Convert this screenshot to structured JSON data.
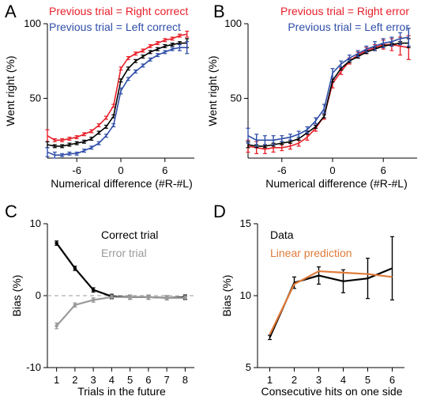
{
  "chart_data": [
    {
      "panel": "A",
      "type": "line",
      "xlabel": "Numerical difference (#R-#L)",
      "ylabel": "Went right (%)",
      "xlim": [
        -10,
        10
      ],
      "ylim": [
        10,
        100
      ],
      "xticks": [
        -6,
        0,
        6
      ],
      "yticks": [
        50,
        100
      ],
      "x": [
        -10,
        -9,
        -8,
        -7,
        -6,
        -5,
        -4,
        -3,
        -2,
        -1,
        0,
        1,
        2,
        3,
        4,
        5,
        6,
        7,
        8,
        9
      ],
      "series": [
        {
          "name": "Previous trial = Right correct",
          "color": "#e8202a",
          "values": [
            25,
            22,
            22,
            23,
            24,
            26,
            28,
            32,
            37,
            45,
            70,
            77,
            80,
            82,
            85,
            87,
            89,
            90,
            92,
            93
          ],
          "errors": [
            4,
            1,
            1,
            1,
            1,
            1,
            1,
            1,
            1,
            1,
            1,
            1,
            1,
            1,
            1,
            1,
            1,
            1,
            1,
            2
          ]
        },
        {
          "name": "",
          "color": "#000000",
          "values": [
            19,
            18,
            18,
            19,
            20,
            21,
            23,
            27,
            31,
            38,
            62,
            70,
            75,
            78,
            81,
            83,
            85,
            86,
            87,
            87
          ],
          "errors": [
            2,
            1,
            1,
            1,
            1,
            1,
            1,
            1,
            1,
            1,
            1,
            1,
            1,
            1,
            1,
            1,
            1,
            1,
            1,
            3
          ]
        },
        {
          "name": "Previous trial = Left correct",
          "color": "#2f4ea8",
          "values": [
            14,
            12,
            12,
            13,
            13,
            15,
            17,
            20,
            25,
            32,
            55,
            63,
            68,
            72,
            76,
            79,
            81,
            83,
            84,
            84
          ],
          "errors": [
            3,
            2,
            1,
            1,
            1,
            1,
            1,
            1,
            1,
            1,
            2,
            1,
            1,
            1,
            1,
            1,
            1,
            1,
            2,
            4
          ]
        }
      ]
    },
    {
      "panel": "B",
      "type": "line",
      "xlabel": "Numerical difference (#R-#L)",
      "ylabel": "Went right (%)",
      "xlim": [
        -10,
        10
      ],
      "ylim": [
        10,
        100
      ],
      "xticks": [
        -6,
        0,
        6
      ],
      "yticks": [
        50,
        100
      ],
      "x": [
        -10,
        -9,
        -8,
        -7,
        -6,
        -5,
        -4,
        -3,
        -2,
        -1,
        0,
        1,
        2,
        3,
        4,
        5,
        6,
        7,
        8,
        9
      ],
      "series": [
        {
          "name": "Previous trial = Right error",
          "color": "#e8202a",
          "values": [
            18,
            17,
            16,
            17,
            17,
            18,
            20,
            24,
            30,
            38,
            60,
            68,
            75,
            79,
            82,
            84,
            86,
            86,
            85,
            84
          ],
          "errors": [
            4,
            4,
            3,
            3,
            2,
            2,
            2,
            2,
            2,
            2,
            3,
            2,
            2,
            2,
            2,
            2,
            3,
            4,
            6,
            8
          ]
        },
        {
          "name": "",
          "color": "#000000",
          "values": [
            19,
            18,
            18,
            19,
            20,
            21,
            23,
            27,
            31,
            38,
            62,
            70,
            75,
            78,
            81,
            83,
            85,
            86,
            87,
            87
          ],
          "errors": [
            2,
            1,
            1,
            1,
            1,
            1,
            1,
            1,
            1,
            1,
            1,
            1,
            1,
            1,
            1,
            1,
            1,
            1,
            1,
            3
          ]
        },
        {
          "name": "Previous trial = Left error",
          "color": "#2f4ea8",
          "values": [
            25,
            22,
            22,
            22,
            23,
            24,
            26,
            29,
            35,
            43,
            67,
            73,
            77,
            80,
            83,
            85,
            87,
            88,
            90,
            91
          ],
          "errors": [
            5,
            4,
            3,
            3,
            2,
            2,
            2,
            2,
            2,
            3,
            3,
            2,
            2,
            2,
            2,
            3,
            3,
            3,
            4,
            6
          ]
        }
      ]
    },
    {
      "panel": "C",
      "type": "line",
      "xlabel": "Trials in the future",
      "ylabel": "Bias (%)",
      "xlim": [
        0.5,
        8.5
      ],
      "ylim": [
        -10,
        10
      ],
      "xticks": [
        1,
        2,
        3,
        4,
        5,
        6,
        7,
        8
      ],
      "yticks": [
        -10,
        0,
        10
      ],
      "x": [
        1,
        2,
        3,
        4,
        5,
        6,
        7,
        8
      ],
      "reference_line": 0,
      "series": [
        {
          "name": "Correct trial",
          "color": "#000000",
          "values": [
            7.3,
            3.8,
            0.8,
            -0.1,
            -0.2,
            -0.2,
            -0.3,
            -0.2
          ],
          "errors": [
            0.3,
            0.3,
            0.3,
            0.3,
            0.3,
            0.3,
            0.3,
            0.3
          ]
        },
        {
          "name": "Error trial",
          "color": "#9a9a9a",
          "values": [
            -4.2,
            -1.3,
            -0.6,
            -0.2,
            -0.2,
            -0.2,
            -0.3,
            -0.3
          ],
          "errors": [
            0.4,
            0.3,
            0.3,
            0.3,
            0.3,
            0.3,
            0.3,
            0.3
          ]
        }
      ]
    },
    {
      "panel": "D",
      "type": "line",
      "xlabel": "Consecutive hits on one side",
      "ylabel": "Bias (%)",
      "xlim": [
        0.5,
        6.5
      ],
      "ylim": [
        5,
        15
      ],
      "xticks": [
        1,
        2,
        3,
        4,
        5,
        6
      ],
      "yticks": [
        5,
        10,
        15
      ],
      "x": [
        1,
        2,
        3,
        4,
        5,
        6
      ],
      "series": [
        {
          "name": "Data",
          "color": "#000000",
          "values": [
            7.1,
            10.9,
            11.4,
            11.0,
            11.2,
            11.9
          ],
          "errors": [
            0.15,
            0.4,
            0.6,
            0.8,
            1.4,
            2.2
          ]
        },
        {
          "name": "Linear prediction",
          "color": "#e07b39",
          "values": [
            7.3,
            10.8,
            11.7,
            11.6,
            11.5,
            11.3
          ],
          "errors": null
        }
      ]
    }
  ],
  "panels": {
    "A": {
      "letter": "A",
      "legend": [
        "Previous trial = Right correct",
        "Previous trial = Left correct"
      ]
    },
    "B": {
      "letter": "B",
      "legend": [
        "Previous trial = Right error",
        "Previous trial = Left error"
      ]
    },
    "C": {
      "letter": "C",
      "legend": [
        "Correct trial",
        "Error trial"
      ]
    },
    "D": {
      "letter": "D",
      "legend": [
        "Data",
        "Linear prediction"
      ]
    }
  }
}
